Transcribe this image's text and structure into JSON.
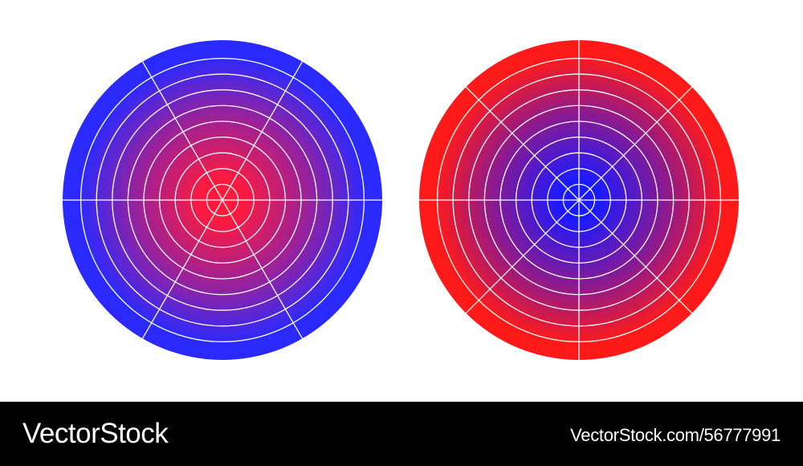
{
  "footer": {
    "brand_logo": "VectorStock",
    "image_credit": "VectorStock.com/56777991"
  },
  "colors": {
    "background": "#ffffff",
    "footer_background": "#000000",
    "footer_text": "#ffffff",
    "grid_line": "#ffffff",
    "blue": "#2323ff",
    "red": "#ff1a1a"
  },
  "polar_grids": [
    {
      "name": "left-polar-grid",
      "center_color": "#ff1a3c",
      "outer_color": "#2a2aff",
      "rings": 10,
      "spokes": 6
    },
    {
      "name": "right-polar-grid",
      "center_color": "#1a1aff",
      "outer_color": "#ff1a1a",
      "rings": 10,
      "spokes": 8
    }
  ]
}
